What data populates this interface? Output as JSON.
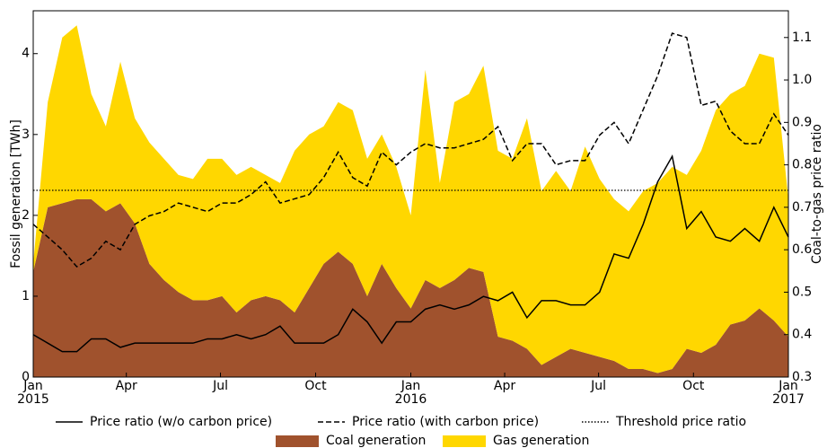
{
  "chart_data": {
    "type": "area",
    "x": [
      2015,
      2015.0385,
      2015.0769,
      2015.1154,
      2015.1538,
      2015.1923,
      2015.2308,
      2015.2692,
      2015.3077,
      2015.3462,
      2015.3846,
      2015.4231,
      2015.4615,
      2015.5,
      2015.5385,
      2015.5769,
      2015.6154,
      2015.6538,
      2015.6923,
      2015.7308,
      2015.7692,
      2015.8077,
      2015.8462,
      2015.8846,
      2015.9231,
      2015.9615,
      2016,
      2016.0385,
      2016.0769,
      2016.1154,
      2016.1538,
      2016.1923,
      2016.2308,
      2016.2692,
      2016.3077,
      2016.3462,
      2016.3846,
      2016.4231,
      2016.4615,
      2016.5,
      2016.5385,
      2016.5769,
      2016.6154,
      2016.6538,
      2016.6923,
      2016.7308,
      2016.7692,
      2016.8077,
      2016.8462,
      2016.8846,
      2016.9231,
      2016.9615,
      2017
    ],
    "xlim": [
      2015,
      2017
    ],
    "xticks": [
      {
        "value": 2015,
        "label": "Jan\n2015"
      },
      {
        "value": 2015.2466,
        "label": "Apr"
      },
      {
        "value": 2015.4959,
        "label": "Jul"
      },
      {
        "value": 2015.7479,
        "label": "Oct"
      },
      {
        "value": 2016,
        "label": "Jan\n2016"
      },
      {
        "value": 2016.2486,
        "label": "Apr"
      },
      {
        "value": 2016.4973,
        "label": "Jul"
      },
      {
        "value": 2016.7486,
        "label": "Oct"
      },
      {
        "value": 2017,
        "label": "Jan\n2017"
      }
    ],
    "ylabel": "Fossil generation [TWh]",
    "ylim": [
      0,
      4.53
    ],
    "yticks": [
      0,
      1,
      2,
      3,
      4
    ],
    "y2label": "Coal-to-gas price ratio",
    "y2lim": [
      0.3,
      1.163
    ],
    "y2ticks": [
      0.3,
      0.4,
      0.5,
      0.6,
      0.7,
      0.8,
      0.9,
      {
        "value": 1,
        "label": "1.0"
      },
      1.1
    ],
    "series": [
      {
        "name": "Coal generation",
        "kind": "area",
        "color": "#a0522d",
        "values": [
          1.3,
          2.1,
          2.15,
          2.2,
          2.2,
          2.05,
          2.15,
          1.9,
          1.4,
          1.2,
          1.05,
          0.95,
          0.95,
          1.0,
          0.8,
          0.95,
          1.0,
          0.95,
          0.8,
          1.1,
          1.4,
          1.55,
          1.4,
          1.0,
          1.4,
          1.1,
          0.85,
          1.2,
          1.1,
          1.2,
          1.35,
          1.3,
          0.5,
          0.45,
          0.35,
          0.15,
          0.25,
          0.35,
          0.3,
          0.25,
          0.2,
          0.1,
          0.1,
          0.05,
          0.1,
          0.35,
          0.3,
          0.4,
          0.65,
          0.7,
          0.85,
          0.7,
          0.5
        ]
      },
      {
        "name": "Gas generation",
        "kind": "area",
        "color": "#ffd700",
        "values": [
          0.1,
          1.3,
          2.05,
          2.15,
          1.3,
          1.05,
          1.75,
          1.3,
          1.5,
          1.5,
          1.45,
          1.5,
          1.75,
          1.7,
          1.7,
          1.65,
          1.5,
          1.45,
          2.0,
          1.9,
          1.7,
          1.85,
          1.9,
          1.7,
          1.6,
          1.5,
          1.15,
          2.6,
          1.3,
          2.2,
          2.15,
          2.55,
          2.3,
          2.25,
          2.85,
          2.15,
          2.3,
          1.95,
          2.55,
          2.2,
          2.0,
          1.95,
          2.2,
          2.35,
          2.5,
          2.15,
          2.5,
          2.9,
          2.85,
          2.9,
          3.15,
          3.25,
          1.7
        ]
      },
      {
        "name": "Price ratio (w/o carbon price)",
        "kind": "line",
        "axis": "y2",
        "color": "#000000",
        "style": "solid",
        "values": [
          0.4,
          0.38,
          0.36,
          0.36,
          0.39,
          0.39,
          0.37,
          0.38,
          0.38,
          0.38,
          0.38,
          0.38,
          0.39,
          0.39,
          0.4,
          0.39,
          0.4,
          0.42,
          0.38,
          0.38,
          0.38,
          0.4,
          0.46,
          0.43,
          0.38,
          0.43,
          0.43,
          0.46,
          0.47,
          0.46,
          0.47,
          0.49,
          0.48,
          0.5,
          0.44,
          0.48,
          0.48,
          0.47,
          0.47,
          0.5,
          0.59,
          0.58,
          0.66,
          0.76,
          0.82,
          0.65,
          0.69,
          0.63,
          0.62,
          0.65,
          0.62,
          0.7,
          0.63
        ]
      },
      {
        "name": "Price ratio (with carbon price)",
        "kind": "line",
        "axis": "y2",
        "color": "#000000",
        "style": "dashed",
        "values": [
          0.66,
          0.63,
          0.6,
          0.56,
          0.58,
          0.62,
          0.6,
          0.66,
          0.68,
          0.69,
          0.71,
          0.7,
          0.69,
          0.71,
          0.71,
          0.73,
          0.76,
          0.71,
          0.72,
          0.73,
          0.77,
          0.83,
          0.77,
          0.75,
          0.83,
          0.8,
          0.83,
          0.85,
          0.84,
          0.84,
          0.85,
          0.86,
          0.89,
          0.81,
          0.85,
          0.85,
          0.8,
          0.81,
          0.81,
          0.87,
          0.9,
          0.85,
          0.93,
          1.01,
          1.11,
          1.1,
          0.94,
          0.95,
          0.88,
          0.85,
          0.85,
          0.92,
          0.87
        ]
      }
    ],
    "threshold": {
      "name": "Threshold price ratio",
      "axis": "y2",
      "color": "#000000",
      "style": "dotted",
      "value": 0.74
    }
  }
}
